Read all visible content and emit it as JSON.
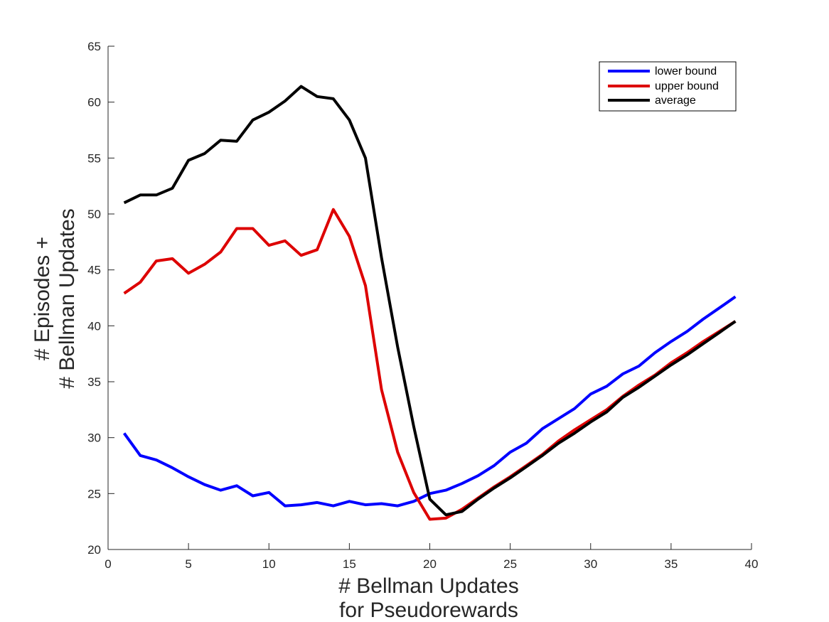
{
  "chart_data": {
    "type": "line",
    "title": "",
    "xlabel": [
      "# Bellman Updates",
      "for Pseudorewards"
    ],
    "ylabel": [
      "# Episodes +",
      "# Bellman Updates"
    ],
    "xlim": [
      0,
      40
    ],
    "ylim": [
      20,
      65
    ],
    "xticks": [
      0,
      5,
      10,
      15,
      20,
      25,
      30,
      35,
      40
    ],
    "yticks": [
      20,
      25,
      30,
      35,
      40,
      45,
      50,
      55,
      60,
      65
    ],
    "grid": false,
    "legend_position": "top-right",
    "x": [
      1,
      2,
      3,
      4,
      5,
      6,
      7,
      8,
      9,
      10,
      11,
      12,
      13,
      14,
      15,
      16,
      17,
      18,
      19,
      20,
      21,
      22,
      23,
      24,
      25,
      26,
      27,
      28,
      29,
      30,
      31,
      32,
      33,
      34,
      35,
      36,
      37,
      38,
      39
    ],
    "series": [
      {
        "name": "lower bound",
        "color": "#0000ff",
        "values": [
          30.4,
          28.4,
          28.0,
          27.3,
          26.5,
          25.8,
          25.3,
          25.7,
          24.8,
          25.1,
          23.9,
          24.0,
          24.2,
          23.9,
          24.3,
          24.0,
          24.1,
          23.9,
          24.3,
          25.0,
          25.3,
          25.9,
          26.6,
          27.5,
          28.7,
          29.5,
          30.8,
          31.7,
          32.6,
          33.9,
          34.6,
          35.7,
          36.4,
          37.6,
          38.6,
          39.5,
          40.6,
          41.6,
          42.6
        ]
      },
      {
        "name": "upper bound",
        "color": "#dd0000",
        "values": [
          42.9,
          43.9,
          45.8,
          46.0,
          44.7,
          45.5,
          46.6,
          48.7,
          48.7,
          47.2,
          47.6,
          46.3,
          46.8,
          50.4,
          48.0,
          43.6,
          34.3,
          28.7,
          25.1,
          22.7,
          22.8,
          23.6,
          24.6,
          25.6,
          26.5,
          27.5,
          28.5,
          29.7,
          30.7,
          31.6,
          32.5,
          33.7,
          34.7,
          35.6,
          36.7,
          37.6,
          38.6,
          39.5,
          40.4
        ]
      },
      {
        "name": "average",
        "color": "#000000",
        "values": [
          51.0,
          51.7,
          51.7,
          52.3,
          54.8,
          55.4,
          56.6,
          56.5,
          58.4,
          59.1,
          60.1,
          61.4,
          60.5,
          60.3,
          58.4,
          55.0,
          46.1,
          38.1,
          31.0,
          24.5,
          23.1,
          23.4,
          24.5,
          25.5,
          26.4,
          27.4,
          28.4,
          29.5,
          30.4,
          31.4,
          32.3,
          33.6,
          34.5,
          35.5,
          36.5,
          37.4,
          38.4,
          39.4,
          40.4
        ]
      }
    ]
  }
}
